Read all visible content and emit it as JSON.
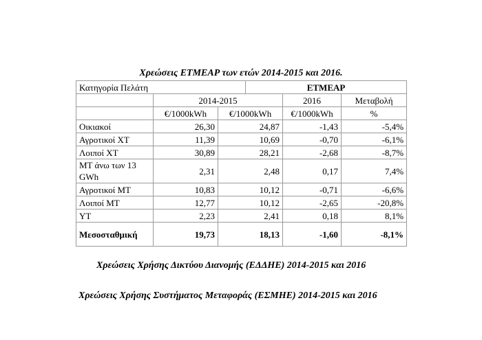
{
  "table": {
    "title": "Χρεώσεις ΕΤΜΕΑΡ των ετών 2014-2015 και 2016.",
    "header": {
      "category_label": "Κατηγορία Πελάτη",
      "group_label": "ΕΤΜΕΑΡ",
      "period_1": "2014-2015",
      "period_2": "2016",
      "change": "Μεταβολή",
      "unit_1": "€/1000kWh",
      "unit_2": "€/1000kWh",
      "unit_3": "€/1000kWh",
      "unit_4": "%"
    },
    "rows": [
      {
        "category": "Οικιακοί",
        "v2014_2015": "26,30",
        "v2016": "24,87",
        "change_abs": "-1,43",
        "change_pct": "-5,4%"
      },
      {
        "category": "Αγροτικοί ΧΤ",
        "v2014_2015": "11,39",
        "v2016": "10,69",
        "change_abs": "-0,70",
        "change_pct": "-6,1%"
      },
      {
        "category": "Λοιποί ΧΤ",
        "v2014_2015": "30,89",
        "v2016": "28,21",
        "change_abs": "-2,68",
        "change_pct": "-8,7%"
      },
      {
        "category": "ΜΤ άνω των 13 GWh",
        "v2014_2015": "2,31",
        "v2016": "2,48",
        "change_abs": "0,17",
        "change_pct": "7,4%"
      },
      {
        "category": "Αγροτικοί ΜΤ",
        "v2014_2015": "10,83",
        "v2016": "10,12",
        "change_abs": "-0,71",
        "change_pct": "-6,6%"
      },
      {
        "category": "Λοιποί ΜΤ",
        "v2014_2015": "12,77",
        "v2016": "10,12",
        "change_abs": "-2,65",
        "change_pct": "-20,8%"
      },
      {
        "category": "ΥΤ",
        "v2014_2015": "2,23",
        "v2016": "2,41",
        "change_abs": "0,18",
        "change_pct": "8,1%"
      },
      {
        "category": "Μεσοσταθμική",
        "v2014_2015": "19,73",
        "v2016": "18,13",
        "change_abs": "-1,60",
        "change_pct": "-8,1%"
      }
    ]
  },
  "headings": {
    "distribution": "Χρεώσεις Χρήσης Δικτύου Διανομής (ΕΔΔΗΕ) 2014-2015 και 2016",
    "transmission": "Χρεώσεις Χρήσης Συστήματος Μεταφοράς (ΕΣΜΗΕ) 2014-2015 και 2016"
  }
}
